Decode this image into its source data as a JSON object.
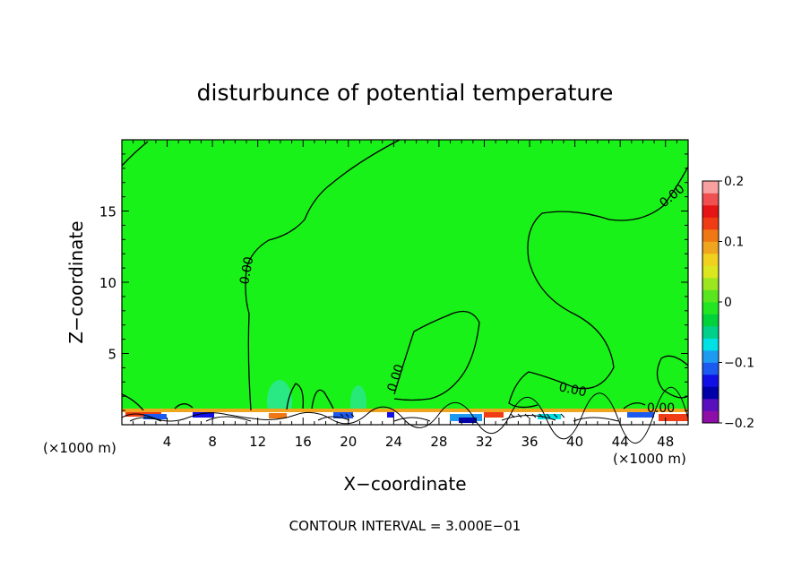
{
  "chart_data": {
    "type": "contour",
    "title": "disturbunce of potential temperature",
    "xlabel": "X−coordinate",
    "ylabel": "Z−coordinate",
    "x_unit_left": "(×1000 m)",
    "x_unit_right": "(×1000 m)",
    "xlim": [
      0,
      50
    ],
    "ylim": [
      0,
      20
    ],
    "x_ticks": [
      4,
      8,
      12,
      16,
      20,
      24,
      28,
      32,
      36,
      40,
      44,
      48
    ],
    "y_ticks": [
      5,
      10,
      15
    ],
    "field_color": "#18f218",
    "contour_label": "0.00",
    "contour_labels_count": 6,
    "contour_interval_text": "CONTOUR INTERVAL = 3.000E−01",
    "colorbar": {
      "range": [
        -0.2,
        0.2
      ],
      "tick_labels": [
        "0.2",
        "0.1",
        "0",
        "−0.1",
        "−0.2"
      ],
      "tick_values": [
        0.2,
        0.1,
        0,
        -0.1,
        -0.2
      ],
      "colors": [
        "#8e0fa8",
        "#5a0fbe",
        "#0000a8",
        "#0f0fe6",
        "#1a5af0",
        "#1e9bf0",
        "#00e1e6",
        "#00d08a",
        "#00d23c",
        "#23e623",
        "#5ae61e",
        "#9be61e",
        "#dce61e",
        "#f0d21e",
        "#f0a51e",
        "#f07814",
        "#f03c14",
        "#e61414",
        "#f05050",
        "#f8a0a0"
      ]
    }
  }
}
